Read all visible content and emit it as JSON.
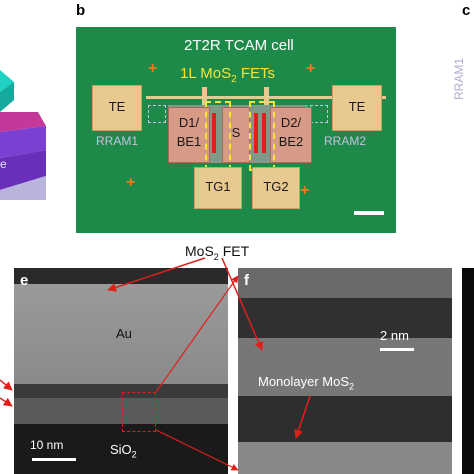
{
  "panels": {
    "b": {
      "letter": "b",
      "title": "2T2R TCAM cell",
      "fet_label_main": "1L MoS",
      "fet_label_sub": "2",
      "fet_label_tail": " FETs",
      "te_left": "TE",
      "te_right": "TE",
      "d1": "D1/",
      "be1": "BE1",
      "s": "S",
      "d2": "D2/",
      "be2": "BE2",
      "rram1": "RRAM1",
      "rram2": "RRAM2",
      "tg1": "TG1",
      "tg2": "TG2"
    },
    "c": {
      "letter": "c",
      "side_label": "RRAM1"
    },
    "e": {
      "letter": "e",
      "header_main": "MoS",
      "header_sub": "2",
      "header_tail": " FET",
      "au": "Au",
      "sio2_main": "SiO",
      "sio2_sub": "2",
      "scale": "10 nm"
    },
    "f": {
      "letter": "f",
      "scale": "2 nm",
      "mono_main": "Monolayer MoS",
      "mono_sub": "2"
    }
  },
  "colors": {
    "chip_green": "#1e8a4a",
    "pad": "#e8c98f",
    "fet_yellow": "#f2e53a",
    "rram_lilac": "#c9bfe3",
    "arrow_red": "#e0201b"
  }
}
